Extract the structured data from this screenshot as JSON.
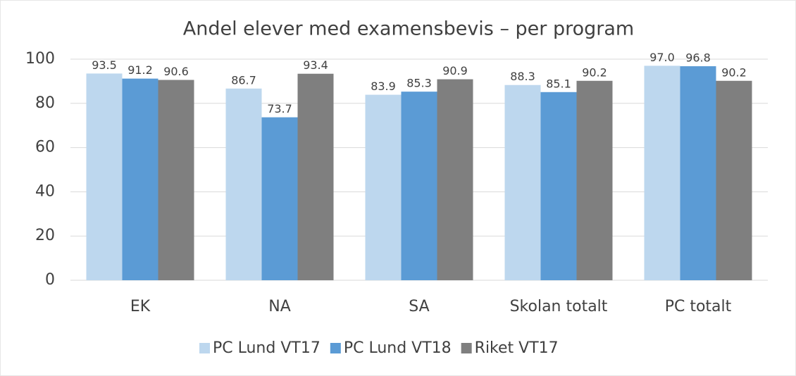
{
  "chart_data": {
    "type": "bar",
    "title": "Andel elever med examensbevis – per program",
    "categories": [
      "EK",
      "NA",
      "SA",
      "Skolan totalt",
      "PC totalt"
    ],
    "series": [
      {
        "name": "PC Lund VT17",
        "color": "#bdd7ee",
        "values": [
          93.5,
          86.7,
          83.9,
          88.3,
          97.0
        ],
        "value_labels": [
          "93.5",
          "86.7",
          "83.9",
          "88.3",
          "97.0"
        ]
      },
      {
        "name": "PC Lund VT18",
        "color": "#5b9bd5",
        "values": [
          91.2,
          73.7,
          85.3,
          85.1,
          96.8
        ],
        "value_labels": [
          "91.2",
          "73.7",
          "85.3",
          "85.1",
          "96.8"
        ]
      },
      {
        "name": "Riket VT17",
        "color": "#7f7f7f",
        "values": [
          90.6,
          93.4,
          90.9,
          90.2,
          90.2
        ],
        "value_labels": [
          "90.6",
          "93.4",
          "90.9",
          "90.2",
          "90.2"
        ]
      }
    ],
    "ylim": [
      0,
      100
    ],
    "yticks": [
      0,
      20,
      40,
      60,
      80,
      100
    ],
    "grid": true,
    "legend": "bottom"
  }
}
